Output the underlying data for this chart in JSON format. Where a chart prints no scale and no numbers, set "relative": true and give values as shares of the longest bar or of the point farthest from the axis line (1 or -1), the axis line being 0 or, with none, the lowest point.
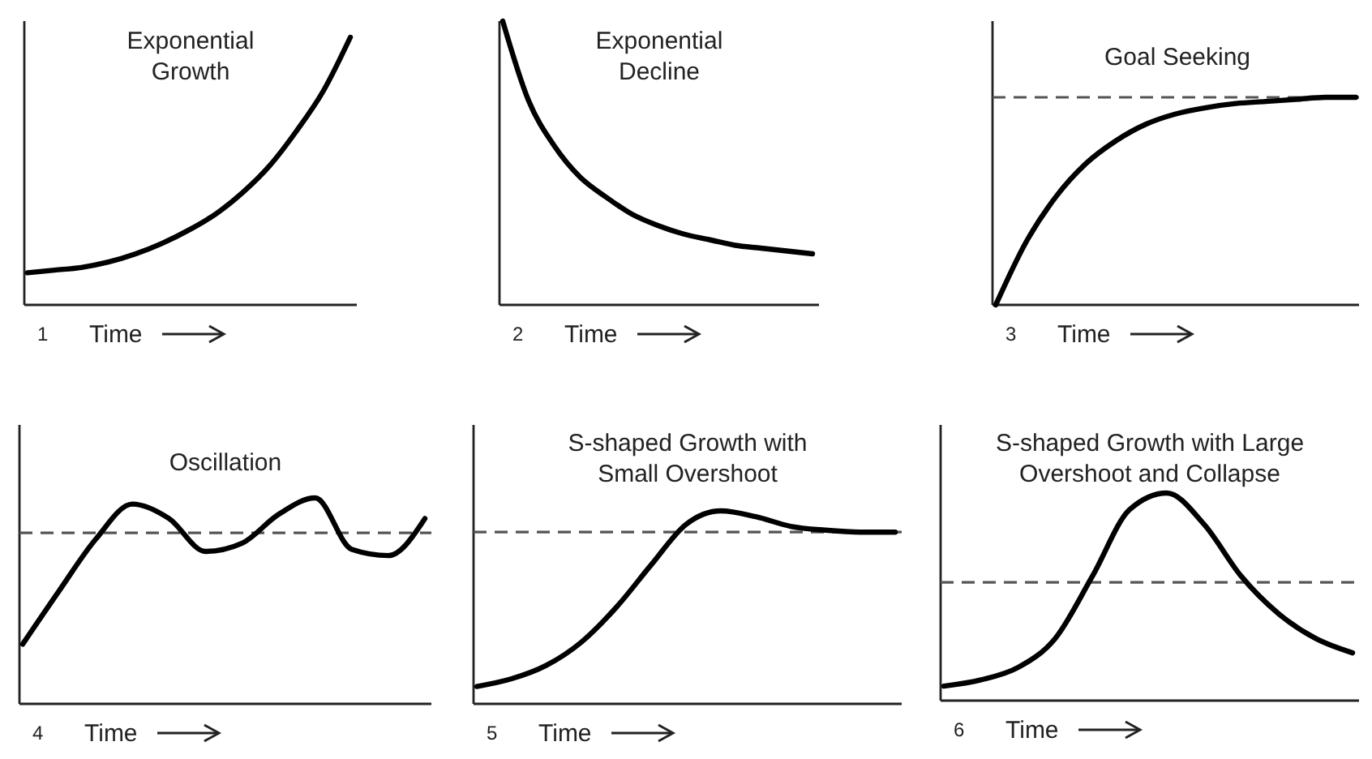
{
  "chart_data": [
    {
      "type": "line",
      "relative": true,
      "title": "Exponential Growth",
      "xlabel": "Time",
      "annotations": [
        "1"
      ],
      "categories": [
        null,
        null,
        null,
        null,
        null,
        null,
        null,
        null,
        null,
        null,
        null,
        null,
        null
      ],
      "series": [
        {
          "color": "#000000",
          "values": [
            0.12,
            0.13,
            0.14,
            0.16,
            0.19,
            0.23,
            0.28,
            0.34,
            0.42,
            0.52,
            0.65,
            0.8,
            1.0
          ]
        }
      ],
      "marker": "none"
    },
    {
      "type": "line",
      "relative": true,
      "title": "Exponential Decline",
      "xlabel": "Time",
      "annotations": [
        "2"
      ],
      "categories": [
        null,
        null,
        null,
        null,
        null,
        null,
        null,
        null,
        null,
        null,
        null,
        null,
        null
      ],
      "series": [
        {
          "color": "#000000",
          "values": [
            1.0,
            0.72,
            0.56,
            0.45,
            0.38,
            0.32,
            0.28,
            0.25,
            0.23,
            0.21,
            0.2,
            0.19,
            0.18
          ]
        }
      ],
      "marker": "none"
    },
    {
      "type": "line",
      "relative": true,
      "title": "Goal Seeking",
      "xlabel": "Time",
      "annotations": [
        "3"
      ],
      "categories": [
        null,
        null,
        null,
        null,
        null,
        null,
        null,
        null,
        null,
        null,
        null,
        null,
        null
      ],
      "series": [
        {
          "color": "#000000",
          "values": [
            0,
            0.3,
            0.52,
            0.68,
            0.79,
            0.87,
            0.92,
            0.95,
            0.97,
            0.98,
            0.99,
            1.0,
            1.0
          ]
        }
      ],
      "ref_lines": [
        {
          "axis": "y",
          "value": 1.0,
          "color": "#555555",
          "line_style": "dashed"
        }
      ],
      "marker": "none"
    },
    {
      "type": "line",
      "relative": true,
      "title": "Oscillation",
      "xlabel": "Time",
      "annotations": [
        "4"
      ],
      "categories": [
        null,
        null,
        null,
        null,
        null,
        null,
        null,
        null,
        null,
        null,
        null,
        null
      ],
      "series": [
        {
          "color": "#000000",
          "values": [
            0.29,
            0.55,
            0.8,
            0.97,
            0.9,
            0.74,
            0.78,
            0.92,
            1.0,
            0.75,
            0.72,
            0.9
          ]
        }
      ],
      "ref_lines": [
        {
          "axis": "y",
          "value": 0.83,
          "color": "#555555",
          "line_style": "dashed"
        }
      ],
      "marker": "none"
    },
    {
      "type": "line",
      "relative": true,
      "title": "S-shaped Growth with Small Overshoot",
      "xlabel": "Time",
      "annotations": [
        "5"
      ],
      "categories": [
        null,
        null,
        null,
        null,
        null,
        null,
        null,
        null,
        null,
        null,
        null,
        null,
        null
      ],
      "series": [
        {
          "color": "#000000",
          "values": [
            0.09,
            0.13,
            0.2,
            0.32,
            0.5,
            0.72,
            0.93,
            1.0,
            0.97,
            0.92,
            0.9,
            0.89,
            0.89
          ]
        }
      ],
      "ref_lines": [
        {
          "axis": "y",
          "value": 0.89,
          "color": "#555555",
          "line_style": "dashed"
        }
      ],
      "marker": "none"
    },
    {
      "type": "line",
      "relative": true,
      "title": "S-shaped Growth with Large Overshoot and Collapse",
      "xlabel": "Time",
      "annotations": [
        "6"
      ],
      "categories": [
        null,
        null,
        null,
        null,
        null,
        null,
        null,
        null,
        null,
        null,
        null,
        null
      ],
      "series": [
        {
          "color": "#000000",
          "values": [
            0.07,
            0.1,
            0.16,
            0.3,
            0.6,
            0.92,
            1.0,
            0.85,
            0.6,
            0.42,
            0.3,
            0.23
          ]
        }
      ],
      "ref_lines": [
        {
          "axis": "y",
          "value": 0.57,
          "color": "#555555",
          "line_style": "dashed"
        }
      ],
      "marker": "none"
    }
  ]
}
